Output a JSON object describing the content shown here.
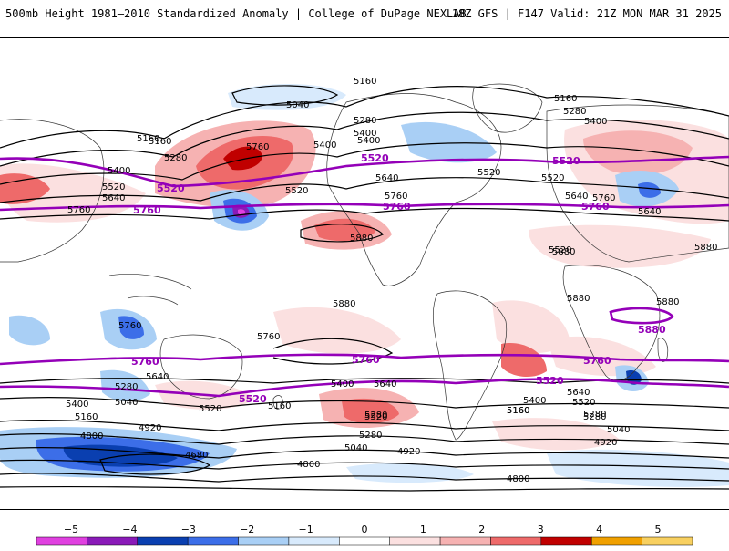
{
  "header": {
    "title": "500mb Height 1981–2010 Standardized Anomaly | College of DuPage NEXLAB",
    "valid": "18Z GFS | F147 Valid: 21Z MON MAR 31 2025"
  },
  "colors": {
    "neg5": "#e040e0",
    "neg4": "#8a1ab8",
    "neg3": "#0a3fb0",
    "neg2": "#3c6ee8",
    "neg1": "#a9cff5",
    "neg05": "#d8eafc",
    "pos05": "#fbe0e0",
    "pos1": "#f6b2b2",
    "pos2": "#ee6a6a",
    "pos3": "#c00000",
    "pos4": "#f0a000",
    "pos5": "#f8d060",
    "highlight_contour": "#9400b8",
    "contour": "#000000"
  },
  "map": {
    "height_labels": [
      {
        "text": "5160"
      },
      {
        "text": "5040"
      },
      {
        "text": "5280"
      },
      {
        "text": "5400"
      },
      {
        "text": "5760"
      },
      {
        "text": "5400"
      },
      {
        "text": "5160"
      },
      {
        "text": "5280"
      },
      {
        "text": "5520"
      },
      {
        "text": "5640"
      },
      {
        "text": "5760"
      },
      {
        "text": "5880"
      },
      {
        "text": "5880"
      },
      {
        "text": "5880"
      },
      {
        "text": "5880"
      },
      {
        "text": "5880"
      },
      {
        "text": "5880"
      },
      {
        "text": "5760"
      },
      {
        "text": "5760"
      },
      {
        "text": "5640"
      },
      {
        "text": "5280"
      },
      {
        "text": "5040"
      },
      {
        "text": "5400"
      },
      {
        "text": "5160"
      },
      {
        "text": "4920"
      },
      {
        "text": "4800"
      },
      {
        "text": "4680"
      },
      {
        "text": "4800"
      },
      {
        "text": "5520"
      },
      {
        "text": "5160"
      },
      {
        "text": "5400"
      },
      {
        "text": "5640"
      },
      {
        "text": "5520"
      },
      {
        "text": "5280"
      },
      {
        "text": "5040"
      },
      {
        "text": "4920"
      },
      {
        "text": "5400"
      },
      {
        "text": "5520"
      },
      {
        "text": "5160"
      },
      {
        "text": "5280"
      },
      {
        "text": "5040"
      },
      {
        "text": "4920"
      },
      {
        "text": "5640"
      },
      {
        "text": "5520"
      },
      {
        "text": "5280"
      },
      {
        "text": "5160"
      },
      {
        "text": "5400"
      },
      {
        "text": "5640"
      },
      {
        "text": "5520"
      },
      {
        "text": "5760"
      },
      {
        "text": "5640"
      },
      {
        "text": "5160"
      },
      {
        "text": "5280"
      },
      {
        "text": "5400"
      },
      {
        "text": "5160"
      },
      {
        "text": "5280"
      },
      {
        "text": "5400"
      },
      {
        "text": "5520"
      },
      {
        "text": "5640"
      },
      {
        "text": "5760"
      },
      {
        "text": "5520"
      },
      {
        "text": "4800"
      }
    ],
    "highlight_labels": [
      {
        "text": "5520"
      },
      {
        "text": "5760"
      },
      {
        "text": "5520"
      },
      {
        "text": "5520"
      },
      {
        "text": "5760"
      },
      {
        "text": "5760"
      },
      {
        "text": "5760"
      },
      {
        "text": "5520"
      },
      {
        "text": "5760"
      },
      {
        "text": "5760"
      },
      {
        "text": "5520"
      },
      {
        "text": "5880"
      }
    ]
  },
  "legend": {
    "ticks": [
      "−5",
      "−4",
      "−3",
      "−2",
      "−1",
      "0",
      "1",
      "2",
      "3",
      "4",
      "5"
    ],
    "segment_colors": [
      "#e040e0",
      "#8a1ab8",
      "#0a3fb0",
      "#3c6ee8",
      "#a9cff5",
      "#d8eafc",
      "#ffffff",
      "#fbe0e0",
      "#f6b2b2",
      "#ee6a6a",
      "#c00000",
      "#f0a000",
      "#f8d060"
    ]
  }
}
